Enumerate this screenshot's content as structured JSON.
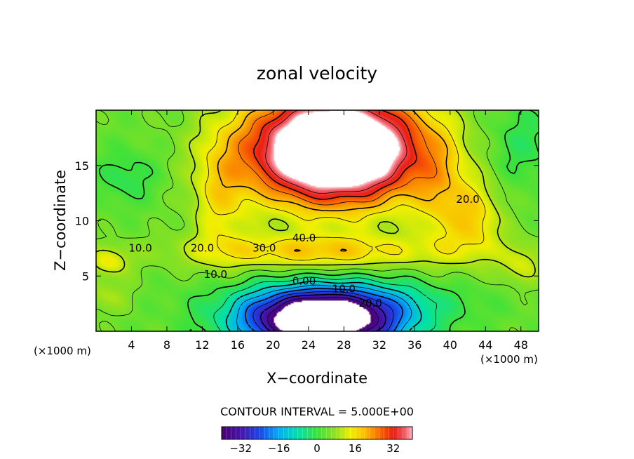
{
  "chart_data": {
    "type": "heatmap",
    "title": "zonal velocity",
    "xlabel": "X−coordinate",
    "ylabel": "Z−coordinate",
    "x_unit_label": "(×1000 m)",
    "z_unit_label": "(×1000 m)",
    "xlim": [
      0,
      50
    ],
    "ylim": [
      0,
      20
    ],
    "x_ticks": [
      "4",
      "8",
      "12",
      "16",
      "20",
      "24",
      "28",
      "32",
      "36",
      "40",
      "44",
      "48"
    ],
    "y_ticks": [
      "5",
      "10",
      "15"
    ],
    "contour_interval_text": "CONTOUR INTERVAL = 5.000E+00",
    "colorbar": {
      "range": [
        -40,
        40
      ],
      "ticks": [
        "−32",
        "−16",
        "0",
        "16",
        "32"
      ]
    },
    "contour_labels": [
      {
        "text": "10.0",
        "x": 5,
        "z": 7.6
      },
      {
        "text": "20.0",
        "x": 12,
        "z": 7.6
      },
      {
        "text": "30.0",
        "x": 19,
        "z": 7.6
      },
      {
        "text": "40.0",
        "x": 23.5,
        "z": 8.5
      },
      {
        "text": "20.0",
        "x": 42,
        "z": 12
      },
      {
        "text": "10.0",
        "x": 13.5,
        "z": 5.2
      },
      {
        "text": "0.00",
        "x": 23.5,
        "z": 4.6
      },
      {
        "text": "10.0",
        "x": 28,
        "z": 3.9
      },
      {
        "text": "20.0",
        "x": 31,
        "z": 2.6
      }
    ],
    "features": [
      {
        "name": "upper jet core",
        "x": 27,
        "z": 15,
        "value_min": 40
      },
      {
        "name": "lower reversed flow core",
        "x": 26,
        "z": 1.2,
        "value_min": -40
      }
    ]
  }
}
